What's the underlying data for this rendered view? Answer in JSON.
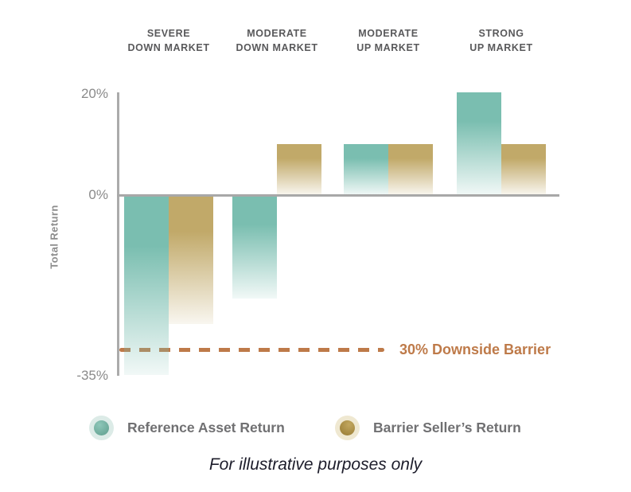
{
  "chart": {
    "headers": [
      {
        "line1": "SEVERE",
        "line2": "DOWN MARKET"
      },
      {
        "line1": "MODERATE",
        "line2": "DOWN MARKET"
      },
      {
        "line1": "MODERATE",
        "line2": "UP MARKET"
      },
      {
        "line1": "STRONG",
        "line2": "UP MARKET"
      }
    ],
    "yticks": [
      {
        "label": "20%"
      },
      {
        "label": "0%"
      },
      {
        "label": "-35%"
      }
    ],
    "ylabel": "Total Return",
    "barrier_label": "30% Downside Barrier"
  },
  "chart_data": {
    "type": "bar",
    "categories": [
      "Severe Down Market",
      "Moderate Down Market",
      "Moderate Up Market",
      "Strong Up Market"
    ],
    "series": [
      {
        "name": "Reference Asset Return",
        "color": "#7ABEB0",
        "values": [
          -35,
          -20,
          10,
          20
        ]
      },
      {
        "name": "Barrier Seller’s Return",
        "color": "#C1A969",
        "values": [
          -25,
          10,
          10,
          10
        ]
      }
    ],
    "title": "",
    "xlabel": "",
    "ylabel": "Total Return",
    "ylim": [
      -36,
      21
    ],
    "ytick_values": [
      20,
      0,
      -35
    ],
    "grid": false,
    "legend_position": "bottom",
    "barrier": {
      "value": -30,
      "label": "30% Downside Barrier",
      "color": "#BE7A49"
    },
    "annotations": [
      "For illustrative purposes only"
    ]
  },
  "legend": {
    "items": [
      {
        "label": "Reference Asset Return",
        "color": "#7ABEB0",
        "icon": "teal-circle-swatch"
      },
      {
        "label": "Barrier Seller’s Return",
        "color": "#C1A969",
        "icon": "gold-circle-swatch"
      }
    ]
  },
  "footer": {
    "note": "For illustrative purposes only"
  },
  "colors": {
    "reference_asset": "#7ABEB0",
    "barrier_seller": "#C1A969",
    "barrier_line": "#BE7A49",
    "axis": "#A9A9A9",
    "tick_text": "#8A8A8A",
    "header_text": "#59595B"
  }
}
